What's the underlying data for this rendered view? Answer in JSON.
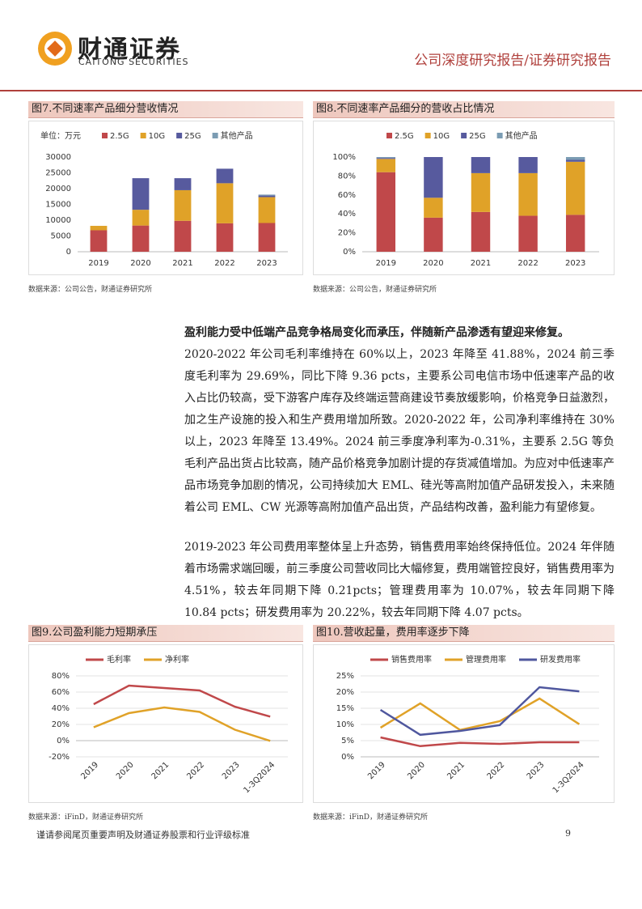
{
  "header": {
    "logo_cn": "财通证券",
    "logo_en": "CAITONG SECURITIES",
    "report_type": "公司深度研究报告/证券研究报告"
  },
  "chart_data": [
    {
      "type": "bar",
      "stacked": true,
      "title": "图7.不同速率产品细分营收情况",
      "unit_label": "单位：万元",
      "source": "数据来源：公司公告，财通证券研究所",
      "categories": [
        "2019",
        "2020",
        "2021",
        "2022",
        "2023"
      ],
      "series": [
        {
          "name": "2.5G",
          "color": "#c0484a",
          "values": [
            6800,
            8300,
            9800,
            9000,
            9100
          ]
        },
        {
          "name": "10G",
          "color": "#e0a228",
          "values": [
            1400,
            5000,
            9700,
            12700,
            8200
          ]
        },
        {
          "name": "25G",
          "color": "#575a9e",
          "values": [
            0,
            10000,
            3800,
            4600,
            500
          ]
        },
        {
          "name": "其他产品",
          "color": "#7b9cb3",
          "values": [
            0,
            0,
            0,
            0,
            300
          ]
        }
      ],
      "ylim": [
        0,
        30000
      ],
      "yticks": [
        0,
        5000,
        10000,
        15000,
        20000,
        25000,
        30000
      ]
    },
    {
      "type": "bar",
      "stacked": true,
      "title": "图8.不同速率产品细分的营收占比情况",
      "source": "数据来源：公司公告，财通证券研究所",
      "categories": [
        "2019",
        "2020",
        "2021",
        "2022",
        "2023"
      ],
      "series": [
        {
          "name": "2.5G",
          "color": "#c0484a",
          "values": [
            84,
            36,
            42,
            38,
            39
          ]
        },
        {
          "name": "10G",
          "color": "#e0a228",
          "values": [
            14,
            21,
            41,
            45,
            56
          ]
        },
        {
          "name": "25G",
          "color": "#575a9e",
          "values": [
            1,
            43,
            17,
            17,
            2
          ]
        },
        {
          "name": "其他产品",
          "color": "#7b9cb3",
          "values": [
            1,
            0,
            0,
            0,
            3
          ]
        }
      ],
      "ylim": [
        0,
        100
      ],
      "yticks": [
        {
          "value": 0,
          "label": "0%"
        },
        {
          "value": 20,
          "label": "20%"
        },
        {
          "value": 40,
          "label": "40%"
        },
        {
          "value": 60,
          "label": "60%"
        },
        {
          "value": 80,
          "label": "80%"
        },
        {
          "value": 100,
          "label": "100%"
        }
      ]
    },
    {
      "type": "line",
      "title": "图9.公司盈利能力短期承压",
      "source": "数据来源：iFinD，财通证券研究所",
      "categories": [
        "2019",
        "2020",
        "2021",
        "2022",
        "2023",
        "1-3Q2024"
      ],
      "series": [
        {
          "name": "毛利率",
          "color": "#c0484a",
          "values": [
            45,
            68,
            65,
            62,
            41.88,
            29.69
          ]
        },
        {
          "name": "净利率",
          "color": "#e0a228",
          "values": [
            16.5,
            34,
            41,
            35.5,
            13.49,
            -0.31
          ]
        }
      ],
      "ylim": [
        -20,
        80
      ],
      "yticks": [
        {
          "value": -20,
          "label": "-20%"
        },
        {
          "value": 0,
          "label": "0%"
        },
        {
          "value": 20,
          "label": "20%"
        },
        {
          "value": 40,
          "label": "40%"
        },
        {
          "value": 60,
          "label": "60%"
        },
        {
          "value": 80,
          "label": "80%"
        }
      ]
    },
    {
      "type": "line",
      "title": "图10.营收起量，费用率逐步下降",
      "source": "数据来源：iFinD，财通证券研究所",
      "categories": [
        "2019",
        "2020",
        "2021",
        "2022",
        "2023",
        "1-3Q2024"
      ],
      "series": [
        {
          "name": "销售费用率",
          "color": "#c0484a",
          "values": [
            6,
            3.3,
            4.3,
            4,
            4.5,
            4.51
          ]
        },
        {
          "name": "管理费用率",
          "color": "#e0a228",
          "values": [
            9,
            16.5,
            8.3,
            11,
            18,
            10.07
          ]
        },
        {
          "name": "研发费用率",
          "color": "#4f579e",
          "values": [
            14.5,
            6.8,
            8,
            9.8,
            21.5,
            20.22
          ]
        }
      ],
      "ylim": [
        0,
        25
      ],
      "yticks": [
        {
          "value": 0,
          "label": "0%"
        },
        {
          "value": 5,
          "label": "5%"
        },
        {
          "value": 10,
          "label": "10%"
        },
        {
          "value": 15,
          "label": "15%"
        },
        {
          "value": 20,
          "label": "20%"
        },
        {
          "value": 25,
          "label": "25%"
        }
      ]
    }
  ],
  "body": {
    "p1_lead": "盈利能力受中低端产品竞争格局变化而承压，伴随新产品渗透有望迎来修复。",
    "p1_text": "2020-2022 年公司毛利率维持在 60%以上，2023 年降至 41.88%，2024 前三季度毛利率为 29.69%，同比下降 9.36 pcts，主要系公司电信市场中低速率产品的收入占比仍较高，受下游客户库存及终端运营商建设节奏放缓影响，价格竞争日益激烈，加之生产设施的投入和生产费用增加所致。2020-2022 年，公司净利率维持在 30%以上，2023 年降至 13.49%。2024 前三季度净利率为-0.31%，主要系 2.5G 等负毛利产品出货占比较高，随产品价格竞争加剧计提的存货减值增加。为应对中低速率产品市场竞争加剧的情况，公司持续加大 EML、硅光等高附加值产品研发投入，未来随着公司 EML、CW 光源等高附加值产品出货，产品结构改善，盈利能力有望修复。",
    "p2": "2019-2023 年公司费用率整体呈上升态势，销售费用率始终保持低位。2024 年伴随着市场需求端回暖，前三季度公司营收同比大幅修复，费用端管控良好，销售费用率为 4.51%，较去年同期下降 0.21pcts；管理费用率为 10.07%，较去年同期下降 10.84 pcts；研发费用率为 20.22%，较去年同期下降 4.07 pcts。"
  },
  "footer": {
    "disclaimer": "谨请参阅尾页重要声明及财通证券股票和行业评级标准",
    "page_number": "9"
  }
}
